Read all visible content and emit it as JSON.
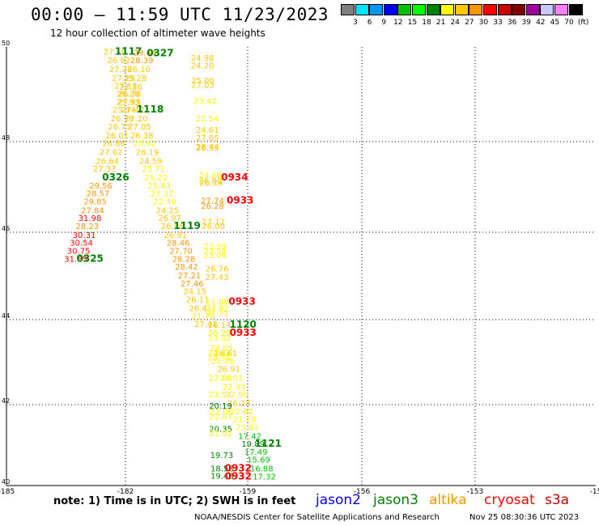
{
  "header": {
    "title": "00:00 – 11:59 UTC 11/23/2023",
    "subtitle": "12 hour collection of altimeter wave heights"
  },
  "color_scale": {
    "boxes": [
      "#808080",
      "#00e5ff",
      "#0096ff",
      "#0000ff",
      "#00c000",
      "#00ff00",
      "#008000",
      "#ffff00",
      "#ffc800",
      "#ff9600",
      "#ff0000",
      "#c80000",
      "#800000",
      "#a000a0",
      "#c8c8ff",
      "#ff80ff",
      "#000000"
    ],
    "labels": [
      "3",
      "6",
      "9",
      "12",
      "15",
      "18",
      "21",
      "24",
      "27",
      "30",
      "33",
      "36",
      "39",
      "42",
      "45",
      "70",
      "(ft)"
    ]
  },
  "footer": {
    "note": "note:  1) Time is in UTC; 2) SWH is in feet",
    "satellites": [
      {
        "name": "jason2",
        "color": "#0000ff"
      },
      {
        "name": "jason3",
        "color": "#008000"
      },
      {
        "name": "altika",
        "color": "#ff9600"
      },
      {
        "name": "cryosat",
        "color": "#ff0000"
      },
      {
        "name": "s3a",
        "color": "#c80000"
      }
    ],
    "credit": "NOAA/NESDIS Center for Satellite Applications and Research",
    "timestamp": "Nov 25 08:30:36 UTC 2023"
  },
  "chart_data": {
    "type": "scatter",
    "x_ticks": [
      "-185",
      "-182",
      "-159",
      "-156",
      "-153",
      "-15"
    ],
    "y_ticks": [
      "50",
      "48",
      "46",
      "44",
      "42",
      "40"
    ],
    "grid": true,
    "labels": [
      {
        "t": "27.10",
        "lon": -183.02,
        "lat": 49.78,
        "c": "#ffc800"
      },
      {
        "t": "1117",
        "lon": -182.2,
        "lat": 49.78,
        "c": "#008000",
        "b": 1
      },
      {
        "t": "29.44",
        "lon": -180.88,
        "lat": 49.76,
        "c": "#ff9600"
      },
      {
        "t": "0327",
        "lon": -179.92,
        "lat": 49.74,
        "c": "#008000",
        "b": 1
      },
      {
        "t": "26.82",
        "lon": -182.74,
        "lat": 49.58,
        "c": "#ffc800"
      },
      {
        "t": "28.39",
        "lon": -181.1,
        "lat": 49.58,
        "c": "#ff9600"
      },
      {
        "t": "27.28",
        "lon": -182.62,
        "lat": 49.38,
        "c": "#ffc800"
      },
      {
        "t": "26.10",
        "lon": -181.3,
        "lat": 49.38,
        "c": "#ffc800"
      },
      {
        "t": "27.29",
        "lon": -182.4,
        "lat": 49.18,
        "c": "#ffc800"
      },
      {
        "t": "25.28",
        "lon": -181.58,
        "lat": 49.18,
        "c": "#ffc800"
      },
      {
        "t": "27.12",
        "lon": -182.24,
        "lat": 49.0,
        "c": "#ffc800"
      },
      {
        "t": "27.56",
        "lon": -181.88,
        "lat": 48.98,
        "c": "#ffc800"
      },
      {
        "t": "28.28",
        "lon": -182.08,
        "lat": 48.82,
        "c": "#ffc800"
      },
      {
        "t": "26.76",
        "lon": -181.97,
        "lat": 48.82,
        "c": "#ffc800"
      },
      {
        "t": "25.93",
        "lon": -182.1,
        "lat": 48.64,
        "c": "#ffc800"
      },
      {
        "t": "27.93",
        "lon": -182.0,
        "lat": 48.64,
        "c": "#ffc800"
      },
      {
        "t": "25.14",
        "lon": -182.36,
        "lat": 48.46,
        "c": "#ffc800"
      },
      {
        "t": "27.42",
        "lon": -181.74,
        "lat": 48.46,
        "c": "#ffc800"
      },
      {
        "t": "1118",
        "lon": -180.64,
        "lat": 48.46,
        "c": "#008000",
        "b": 1
      },
      {
        "t": "26.76",
        "lon": -182.5,
        "lat": 48.26,
        "c": "#ffc800"
      },
      {
        "t": "27.20",
        "lon": -181.5,
        "lat": 48.26,
        "c": "#ffc800"
      },
      {
        "t": "26.75",
        "lon": -182.7,
        "lat": 48.08,
        "c": "#ffc800"
      },
      {
        "t": "27.05",
        "lon": -181.26,
        "lat": 48.08,
        "c": "#ffc800"
      },
      {
        "t": "26.01",
        "lon": -182.86,
        "lat": 47.88,
        "c": "#ffc800"
      },
      {
        "t": "26.38",
        "lon": -181.1,
        "lat": 47.88,
        "c": "#ffc800"
      },
      {
        "t": "26.86",
        "lon": -183.1,
        "lat": 47.7,
        "c": "#ffc800"
      },
      {
        "t": "25.92",
        "lon": -180.9,
        "lat": 47.7,
        "c": "#ffff00"
      },
      {
        "t": "27.62",
        "lon": -183.3,
        "lat": 47.5,
        "c": "#ffc800"
      },
      {
        "t": "26.19",
        "lon": -180.7,
        "lat": 47.5,
        "c": "#ffc800"
      },
      {
        "t": "26.64",
        "lon": -183.56,
        "lat": 47.3,
        "c": "#ffc800"
      },
      {
        "t": "24.59",
        "lon": -180.46,
        "lat": 47.3,
        "c": "#ffc800"
      },
      {
        "t": "27.37",
        "lon": -183.76,
        "lat": 47.12,
        "c": "#ffc800"
      },
      {
        "t": "25.71",
        "lon": -180.26,
        "lat": 47.12,
        "c": "#ffff00"
      },
      {
        "t": "0326",
        "lon": -183.1,
        "lat": 46.92,
        "c": "#008000",
        "b": 1
      },
      {
        "t": "25.22",
        "lon": -180.08,
        "lat": 46.92,
        "c": "#ffff00"
      },
      {
        "t": "29.56",
        "lon": -184.04,
        "lat": 46.74,
        "c": "#ff9600"
      },
      {
        "t": "25.63",
        "lon": -179.84,
        "lat": 46.74,
        "c": "#ffff00"
      },
      {
        "t": "28.57",
        "lon": -184.24,
        "lat": 46.56,
        "c": "#ff9600"
      },
      {
        "t": "23.37",
        "lon": -179.66,
        "lat": 46.56,
        "c": "#ffff00"
      },
      {
        "t": "29.85",
        "lon": -184.44,
        "lat": 46.38,
        "c": "#ff9600"
      },
      {
        "t": "22.49",
        "lon": -179.46,
        "lat": 46.38,
        "c": "#ffff00"
      },
      {
        "t": "27.84",
        "lon": -184.62,
        "lat": 46.18,
        "c": "#ff9600"
      },
      {
        "t": "24.25",
        "lon": -179.26,
        "lat": 46.18,
        "c": "#ffc800"
      },
      {
        "t": "31.98",
        "lon": -184.82,
        "lat": 46.0,
        "c": "#ff0000"
      },
      {
        "t": "26.97",
        "lon": -179.1,
        "lat": 46.0,
        "c": "#ffc800"
      },
      {
        "t": "28.23",
        "lon": -185.0,
        "lat": 45.82,
        "c": "#ff9600"
      },
      {
        "t": "26.86",
        "lon": -178.9,
        "lat": 45.82,
        "c": "#ffc800"
      },
      {
        "t": "1119",
        "lon": -178.0,
        "lat": 45.82,
        "c": "#008000",
        "b": 1
      },
      {
        "t": "30.31",
        "lon": -185.22,
        "lat": 45.62,
        "c": "#ff0000"
      },
      {
        "t": "26.91",
        "lon": -178.7,
        "lat": 45.62,
        "c": "#ffc800"
      },
      {
        "t": "30.54",
        "lon": -185.42,
        "lat": 45.44,
        "c": "#ff0000"
      },
      {
        "t": "28.46",
        "lon": -178.5,
        "lat": 45.44,
        "c": "#ff9600"
      },
      {
        "t": "30.75",
        "lon": -185.62,
        "lat": 45.26,
        "c": "#ff0000"
      },
      {
        "t": "27.70",
        "lon": -178.3,
        "lat": 45.26,
        "c": "#ff9600"
      },
      {
        "t": "31.65",
        "lon": -185.82,
        "lat": 45.08,
        "c": "#ff0000"
      },
      {
        "t": "0325",
        "lon": -184.94,
        "lat": 45.08,
        "c": "#008000",
        "b": 1
      },
      {
        "t": "28.28",
        "lon": -178.1,
        "lat": 45.08,
        "c": "#ff9600"
      },
      {
        "t": "28.42",
        "lon": -177.9,
        "lat": 44.9,
        "c": "#ff9600"
      },
      {
        "t": "27.21",
        "lon": -177.7,
        "lat": 44.7,
        "c": "#ff9600"
      },
      {
        "t": "27.46",
        "lon": -177.5,
        "lat": 44.52,
        "c": "#ff9600"
      },
      {
        "t": "24.15",
        "lon": -177.3,
        "lat": 44.34,
        "c": "#ffc800"
      },
      {
        "t": "26.11",
        "lon": -177.1,
        "lat": 44.16,
        "c": "#ffc800"
      },
      {
        "t": "26.41",
        "lon": -176.9,
        "lat": 43.96,
        "c": "#ffc800"
      },
      {
        "t": "21.79",
        "lon": -176.7,
        "lat": 43.78,
        "c": "#ffff00"
      },
      {
        "t": "27.41",
        "lon": -176.52,
        "lat": 43.6,
        "c": "#ffc800"
      },
      {
        "t": "24.98",
        "lon": -176.76,
        "lat": 49.64,
        "c": "#ffc800"
      },
      {
        "t": "24.20",
        "lon": -176.76,
        "lat": 49.46,
        "c": "#ffc800"
      },
      {
        "t": "25.00",
        "lon": -176.74,
        "lat": 49.12,
        "c": "#ffc800"
      },
      {
        "t": "27.03",
        "lon": -176.74,
        "lat": 49.02,
        "c": "#ffc800"
      },
      {
        "t": "23.42",
        "lon": -176.56,
        "lat": 48.66,
        "c": "#ffff00"
      },
      {
        "t": "22.54",
        "lon": -176.42,
        "lat": 48.26,
        "c": "#ffff00"
      },
      {
        "t": "24.61",
        "lon": -176.4,
        "lat": 48.0,
        "c": "#ffc800"
      },
      {
        "t": "27.05",
        "lon": -176.4,
        "lat": 47.82,
        "c": "#ffc800"
      },
      {
        "t": "26.44",
        "lon": -176.4,
        "lat": 47.62,
        "c": "#ffc800"
      },
      {
        "t": "26.33",
        "lon": -176.4,
        "lat": 47.6,
        "c": "#ffc800"
      },
      {
        "t": "24.68",
        "lon": -176.2,
        "lat": 46.98,
        "c": "#ffff00"
      },
      {
        "t": "26.80",
        "lon": -176.2,
        "lat": 46.86,
        "c": "#ffc800"
      },
      {
        "t": "0934",
        "lon": -174.6,
        "lat": 46.92,
        "c": "#ff0000",
        "b": 1
      },
      {
        "t": "26.39",
        "lon": -176.16,
        "lat": 46.8,
        "c": "#ffc800"
      },
      {
        "t": "27.74",
        "lon": -176.04,
        "lat": 46.4,
        "c": "#ff9600"
      },
      {
        "t": "0933",
        "lon": -174.2,
        "lat": 46.4,
        "c": "#ff0000",
        "b": 1
      },
      {
        "t": "26.28",
        "lon": -176.04,
        "lat": 46.28,
        "c": "#ff9600"
      },
      {
        "t": "27.12",
        "lon": -175.98,
        "lat": 45.92,
        "c": "#ffc800"
      },
      {
        "t": "26.00",
        "lon": -175.98,
        "lat": 45.82,
        "c": "#ffc800"
      },
      {
        "t": "23.39",
        "lon": -175.86,
        "lat": 45.36,
        "c": "#ffff00"
      },
      {
        "t": "22.54",
        "lon": -175.86,
        "lat": 45.26,
        "c": "#ffff00"
      },
      {
        "t": "23.06",
        "lon": -175.86,
        "lat": 45.16,
        "c": "#ffff00"
      },
      {
        "t": "26.76",
        "lon": -175.72,
        "lat": 44.86,
        "c": "#ffc800"
      },
      {
        "t": "27.43",
        "lon": -175.72,
        "lat": 44.66,
        "c": "#ffc800"
      },
      {
        "t": "21.88",
        "lon": -175.7,
        "lat": 44.1,
        "c": "#ffff00"
      },
      {
        "t": "0933",
        "lon": -174.06,
        "lat": 44.1,
        "c": "#ff0000",
        "b": 1
      },
      {
        "t": "24.82",
        "lon": -175.7,
        "lat": 43.96,
        "c": "#ffff00"
      },
      {
        "t": "21.71",
        "lon": -175.7,
        "lat": 43.84,
        "c": "#ffff00"
      },
      {
        "t": "26.14",
        "lon": -175.54,
        "lat": 43.58,
        "c": "#ffc800"
      },
      {
        "t": "1120",
        "lon": -174.0,
        "lat": 43.58,
        "c": "#008000",
        "b": 1
      },
      {
        "t": "20.29",
        "lon": -175.54,
        "lat": 43.4,
        "c": "#ffff00"
      },
      {
        "t": "0933",
        "lon": -174.0,
        "lat": 43.4,
        "c": "#ff0000",
        "b": 1
      },
      {
        "t": "23.02",
        "lon": -175.54,
        "lat": 43.28,
        "c": "#ffff00"
      },
      {
        "t": "24.05",
        "lon": -175.4,
        "lat": 43.06,
        "c": "#ffff00"
      },
      {
        "t": "24.44",
        "lon": -175.54,
        "lat": 42.94,
        "c": "#ffff00"
      },
      {
        "t": "26.61",
        "lon": -175.1,
        "lat": 42.94,
        "c": "#ffc800"
      },
      {
        "t": "25.55",
        "lon": -175.56,
        "lat": 42.84,
        "c": "#ffff00"
      },
      {
        "t": "21.26",
        "lon": -175.3,
        "lat": 42.76,
        "c": "#ffff00"
      },
      {
        "t": "26.91",
        "lon": -174.88,
        "lat": 42.58,
        "c": "#ffc800"
      },
      {
        "t": "22.88",
        "lon": -175.48,
        "lat": 42.38,
        "c": "#ffff00"
      },
      {
        "t": "24.01",
        "lon": -174.7,
        "lat": 42.38,
        "c": "#ffff00"
      },
      {
        "t": "22.93",
        "lon": -174.5,
        "lat": 42.18,
        "c": "#ffff00"
      },
      {
        "t": "23.51",
        "lon": -175.48,
        "lat": 42.0,
        "c": "#ffff00"
      },
      {
        "t": "22.99",
        "lon": -174.3,
        "lat": 42.0,
        "c": "#ffff00"
      },
      {
        "t": "26.27",
        "lon": -174.14,
        "lat": 41.8,
        "c": "#ffc800"
      },
      {
        "t": "20.19",
        "lon": -175.46,
        "lat": 41.74,
        "c": "#008000"
      },
      {
        "t": "22.62",
        "lon": -173.96,
        "lat": 41.62,
        "c": "#ffff00"
      },
      {
        "t": "22.06",
        "lon": -175.42,
        "lat": 41.62,
        "c": "#ffff00"
      },
      {
        "t": "21.28",
        "lon": -173.76,
        "lat": 41.44,
        "c": "#ffff00"
      },
      {
        "t": "22.67",
        "lon": -175.44,
        "lat": 41.5,
        "c": "#ffff00"
      },
      {
        "t": "23.81",
        "lon": -173.56,
        "lat": 41.26,
        "c": "#ffff00"
      },
      {
        "t": "20.35",
        "lon": -175.46,
        "lat": 41.22,
        "c": "#008000"
      },
      {
        "t": "21.02",
        "lon": -175.46,
        "lat": 41.12,
        "c": "#ffff00"
      },
      {
        "t": "17.42",
        "lon": -173.38,
        "lat": 41.06,
        "c": "#00c000"
      },
      {
        "t": "19.89",
        "lon": -173.14,
        "lat": 40.88,
        "c": "#008000"
      },
      {
        "t": "1121",
        "lon": -172.2,
        "lat": 40.88,
        "c": "#008000",
        "b": 1
      },
      {
        "t": "17.49",
        "lon": -172.94,
        "lat": 40.7,
        "c": "#00c000"
      },
      {
        "t": "19.73",
        "lon": -175.38,
        "lat": 40.62,
        "c": "#008000"
      },
      {
        "t": "15.69",
        "lon": -172.74,
        "lat": 40.52,
        "c": "#00c000"
      },
      {
        "t": "18.58",
        "lon": -175.36,
        "lat": 40.32,
        "c": "#008000"
      },
      {
        "t": "0932",
        "lon": -174.34,
        "lat": 40.32,
        "c": "#ff0000",
        "b": 1
      },
      {
        "t": "16.88",
        "lon": -172.52,
        "lat": 40.32,
        "c": "#00c000"
      },
      {
        "t": "19.46",
        "lon": -175.36,
        "lat": 40.16,
        "c": "#008000"
      },
      {
        "t": "0932",
        "lon": -174.34,
        "lat": 40.14,
        "c": "#ff0000",
        "b": 1
      },
      {
        "t": "17.32",
        "lon": -172.34,
        "lat": 40.14,
        "c": "#00c000"
      }
    ]
  }
}
